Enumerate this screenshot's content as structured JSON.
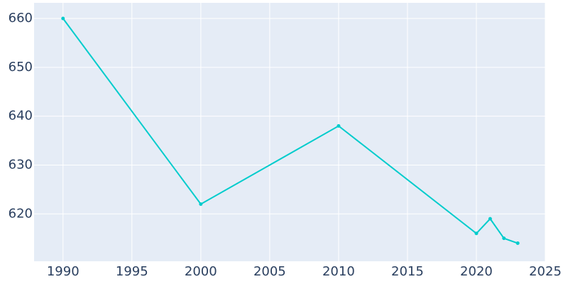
{
  "chart_data": {
    "type": "line",
    "x": [
      1990,
      2000,
      2010,
      2020,
      2021,
      2022,
      2023
    ],
    "series": [
      {
        "color": "#00cccc",
        "values": [
          660,
          622,
          638,
          616,
          619,
          615,
          614
        ]
      }
    ],
    "xlim": [
      1987.9,
      2025
    ],
    "ylim": [
      610.3,
      663.2
    ],
    "xticks": [
      1990,
      1995,
      2000,
      2005,
      2010,
      2015,
      2020,
      2025
    ],
    "yticks": [
      620,
      630,
      640,
      650,
      660
    ],
    "grid": true
  }
}
